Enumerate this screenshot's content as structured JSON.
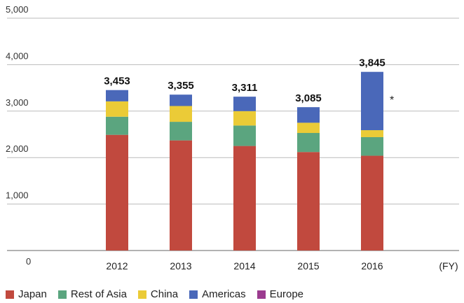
{
  "chart_data": {
    "type": "bar",
    "stacked": true,
    "categories": [
      "2012",
      "2013",
      "2014",
      "2015",
      "2016"
    ],
    "x_unit_label": "(FY)",
    "ylim": [
      0,
      5000
    ],
    "yticks": [
      "0",
      "1,000",
      "2,000",
      "3,000",
      "4,000",
      "5,000"
    ],
    "grid": true,
    "legend_position": "bottom",
    "series": [
      {
        "name": "Japan",
        "color": "#C1493E",
        "values": [
          2490,
          2370,
          2250,
          2120,
          2040
        ]
      },
      {
        "name": "Rest of Asia",
        "color": "#5BA57F",
        "values": [
          390,
          400,
          440,
          410,
          400
        ]
      },
      {
        "name": "China",
        "color": "#EBCB37",
        "values": [
          330,
          340,
          310,
          220,
          150
        ]
      },
      {
        "name": "Americas",
        "color": "#4A68B9",
        "values": [
          243,
          245,
          311,
          335,
          1255
        ]
      },
      {
        "name": "Europe",
        "color": "#9B3B8F",
        "values": [
          0,
          0,
          0,
          0,
          0
        ]
      }
    ],
    "totals": [
      "3,453",
      "3,355",
      "3,311",
      "3,085",
      "3,845"
    ],
    "annotations": [
      {
        "category": "2016",
        "text": "*"
      }
    ]
  }
}
